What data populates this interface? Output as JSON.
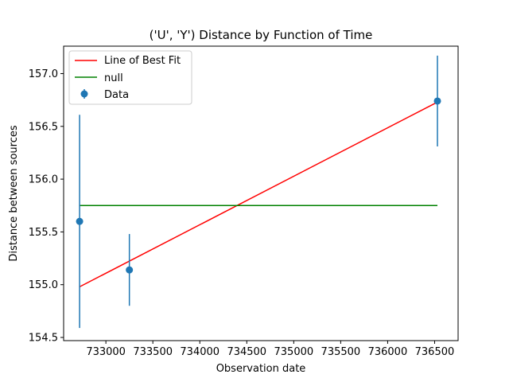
{
  "chart_data": {
    "type": "scatter",
    "title": "('U', 'Y') Distance by Function of Time",
    "xlabel": "Observation date",
    "ylabel": "Distance between sources",
    "xlim": [
      732550,
      736750
    ],
    "ylim": [
      154.47,
      157.26
    ],
    "xticks": [
      733000,
      733500,
      734000,
      734500,
      735000,
      735500,
      736000,
      736500
    ],
    "yticks": [
      154.5,
      155.0,
      155.5,
      156.0,
      156.5,
      157.0
    ],
    "ytick_labels": [
      "154.5",
      "155.0",
      "155.5",
      "156.0",
      "156.5",
      "157.0"
    ],
    "legend_position": "top-left",
    "grid": false,
    "series": [
      {
        "name": "Line of Best Fit",
        "kind": "line",
        "color": "#ff0000",
        "x": [
          732720,
          736530
        ],
        "y": [
          154.98,
          156.73
        ]
      },
      {
        "name": "null",
        "kind": "line",
        "color": "#008000",
        "x": [
          732720,
          736530
        ],
        "y": [
          155.75,
          155.75
        ]
      },
      {
        "name": "Data",
        "kind": "errorbar",
        "color": "#1f77b4",
        "x": [
          732720,
          733250,
          736530
        ],
        "y": [
          155.6,
          155.14,
          156.74
        ],
        "yerr": [
          1.01,
          0.34,
          0.43
        ]
      }
    ]
  }
}
